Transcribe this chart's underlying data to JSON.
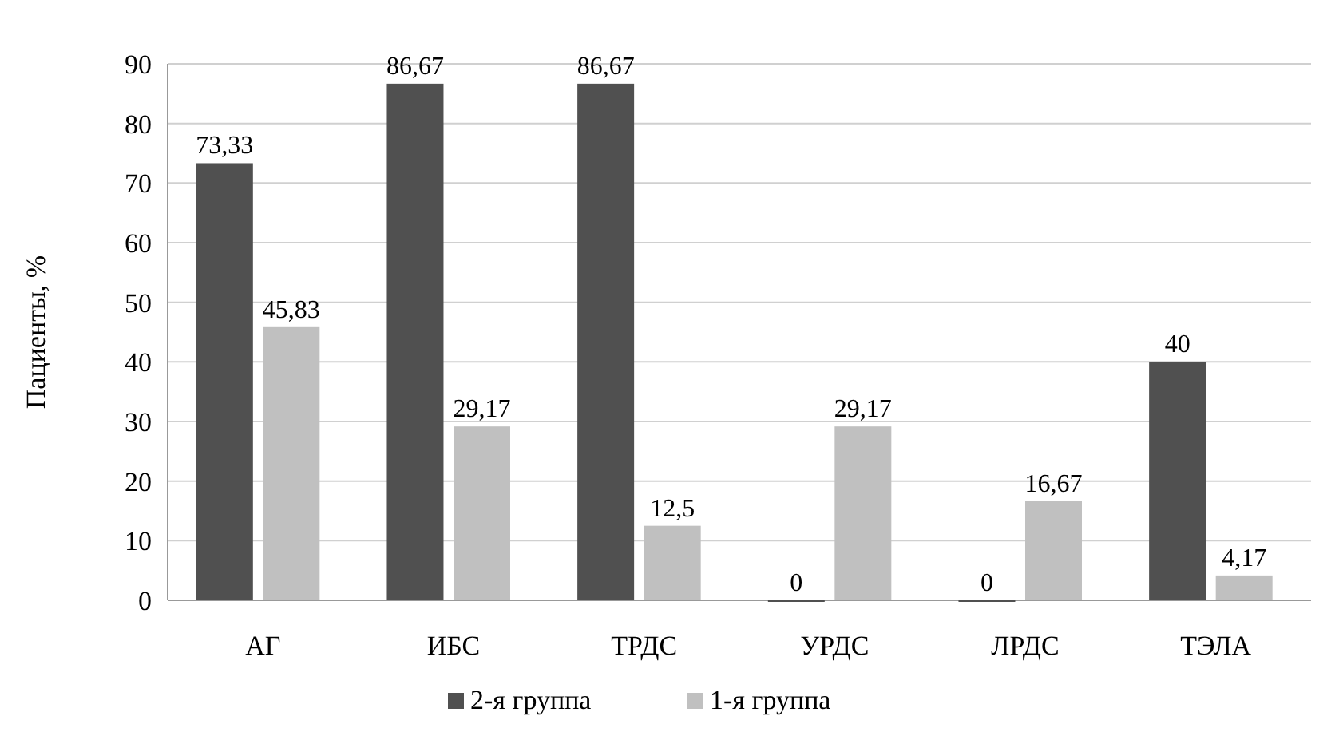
{
  "chart_data": {
    "type": "bar",
    "ylabel": "Пациенты, %",
    "categories": [
      "АГ",
      "ИБС",
      "ТРДС",
      "УРДС",
      "ЛРДС",
      "ТЭЛА"
    ],
    "series": [
      {
        "name": "2-я группа",
        "color": "#505050",
        "values": [
          73.33,
          86.67,
          86.67,
          0,
          0,
          40
        ],
        "value_labels": [
          "73,33",
          "86,67",
          "86,67",
          "0",
          "0",
          "40"
        ]
      },
      {
        "name": "1-я группа",
        "color": "#c0c0c0",
        "values": [
          45.83,
          29.17,
          12.5,
          29.17,
          16.67,
          4.17
        ],
        "value_labels": [
          "45,83",
          "29,17",
          "12,5",
          "29,17",
          "16,67",
          "4,17"
        ]
      }
    ],
    "ylim": [
      0,
      90
    ],
    "yticks": [
      0,
      10,
      20,
      30,
      40,
      50,
      60,
      70,
      80,
      90
    ],
    "grid": "y",
    "legend": "bottom"
  }
}
